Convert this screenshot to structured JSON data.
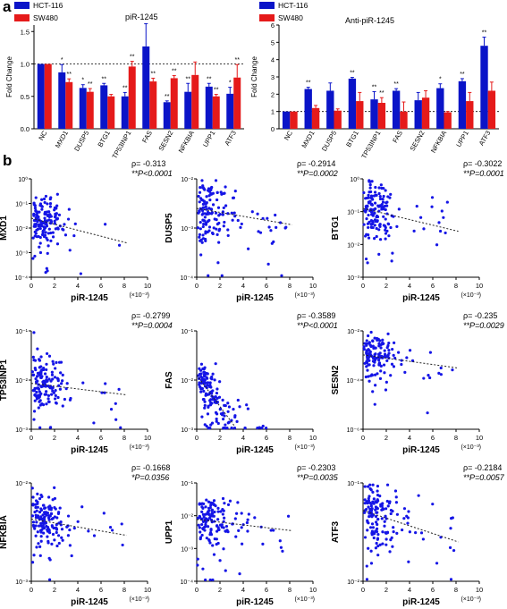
{
  "panel_labels": {
    "a": "a",
    "b": "b"
  },
  "colors": {
    "hct": "#0a14c8",
    "sw": "#e51a1a",
    "dots": "#1515e6"
  },
  "chart_data": [
    {
      "type": "bar",
      "title": "piR-1245",
      "ylabel": "Fold Change",
      "ylim": [
        0,
        1.6
      ],
      "yticks": [
        "0.0",
        "0.5",
        "1.0",
        "1.5"
      ],
      "reference_line": 1.0,
      "categories": [
        "NC",
        "MXD1",
        "DUSP5",
        "BTG1",
        "TP53INP1",
        "FAS",
        "SESN2",
        "NFKBIA",
        "UPP1",
        "ATF3"
      ],
      "series": [
        {
          "name": "HCT-116",
          "values": [
            1.0,
            0.87,
            0.63,
            0.67,
            0.5,
            1.27,
            0.41,
            0.57,
            0.65,
            0.54
          ],
          "errors": [
            0.0,
            0.12,
            0.05,
            0.03,
            0.06,
            0.35,
            0.02,
            0.13,
            0.05,
            0.1
          ]
        },
        {
          "name": "SW480",
          "values": [
            1.0,
            0.72,
            0.57,
            0.5,
            0.96,
            0.73,
            0.78,
            0.83,
            0.5,
            0.79
          ],
          "errors": [
            0.0,
            0.05,
            0.05,
            0.03,
            0.08,
            0.05,
            0.04,
            0.2,
            0.03,
            0.2
          ]
        }
      ],
      "annotations": {
        "HCT-116": [
          "",
          "*",
          "*",
          "**",
          "**",
          "",
          "**",
          "**",
          "**",
          "*"
        ],
        "SW480": [
          "",
          "**",
          "**",
          "",
          "**",
          "**",
          "**",
          "",
          "**",
          "**"
        ]
      },
      "legend": [
        "HCT-116",
        "SW480"
      ]
    },
    {
      "type": "bar",
      "title": "Anti-piR-1245",
      "ylabel": "Fold Change",
      "ylim": [
        0,
        6
      ],
      "yticks": [
        "0",
        "1",
        "2",
        "3",
        "4",
        "5",
        "6"
      ],
      "reference_line": 1.0,
      "categories": [
        "NC",
        "MXD1",
        "DUSP5",
        "BTG1",
        "TP53INP1",
        "FAS",
        "SESN2",
        "NFKBIA",
        "UPP1",
        "ATF3"
      ],
      "series": [
        {
          "name": "HCT-116",
          "values": [
            1.0,
            2.3,
            2.2,
            2.9,
            1.7,
            2.2,
            1.65,
            2.35,
            2.75,
            4.8
          ],
          "errors": [
            0.0,
            0.1,
            0.45,
            0.07,
            0.45,
            0.12,
            0.45,
            0.25,
            0.15,
            0.5
          ]
        },
        {
          "name": "SW480",
          "values": [
            1.0,
            1.2,
            1.05,
            1.6,
            1.5,
            1.0,
            1.8,
            0.95,
            1.6,
            2.2
          ],
          "errors": [
            0.0,
            0.15,
            0.1,
            0.5,
            0.3,
            0.55,
            0.4,
            0.05,
            0.5,
            0.5
          ]
        }
      ],
      "annotations": {
        "HCT-116": [
          "",
          "**",
          "",
          "**",
          "**",
          "**",
          "",
          "*",
          "**",
          "**"
        ],
        "SW480": [
          "",
          "",
          "",
          "",
          "**",
          "",
          "",
          "",
          "",
          ""
        ]
      },
      "legend": [
        "HCT-116",
        "SW480"
      ]
    },
    {
      "type": "scatter",
      "ylabel": "MXD1",
      "xlabel": "piR-1245",
      "xunit": "(×10⁻³)",
      "xlim": [
        0,
        10
      ],
      "xticks": [
        0,
        2,
        4,
        6,
        8,
        10
      ],
      "ylog": [
        -4,
        0
      ],
      "yticks": [
        "10⁰",
        "10⁻¹",
        "10⁻²",
        "10⁻³",
        "10⁻⁴"
      ],
      "rho": "ρ= -0.313",
      "pvalue": "**P<0.0001",
      "trend": [
        [
          0,
          -1.6
        ],
        [
          8.2,
          -2.6
        ]
      ]
    },
    {
      "type": "scatter",
      "ylabel": "DUSP5",
      "xlabel": "piR-1245",
      "xunit": "(×10⁻³)",
      "xlim": [
        0,
        10
      ],
      "xticks": [
        0,
        2,
        4,
        6,
        8,
        10
      ],
      "ylog": [
        -4,
        -1
      ],
      "yticks": [
        "10⁻²",
        "10⁻³",
        "10⁻⁴"
      ],
      "rho": "ρ= -0.2914",
      "pvalue": "**P=0.0002",
      "trend": [
        [
          0,
          -1.9
        ],
        [
          8.2,
          -2.4
        ]
      ]
    },
    {
      "type": "scatter",
      "ylabel": "BTG1",
      "xlabel": "piR-1245",
      "xunit": "(×10⁻³)",
      "xlim": [
        0,
        10
      ],
      "xticks": [
        0,
        2,
        4,
        6,
        8,
        10
      ],
      "ylog": [
        -3,
        0
      ],
      "yticks": [
        "10⁰",
        "10⁻¹",
        "10⁻²",
        "10⁻³"
      ],
      "rho": "ρ= -0.3022",
      "pvalue": "**P=0.0001",
      "trend": [
        [
          0,
          -0.9
        ],
        [
          8.2,
          -1.6
        ]
      ]
    },
    {
      "type": "scatter",
      "ylabel": "TP53INP1",
      "xlabel": "piR-1245",
      "xunit": "(×10⁻³)",
      "xlim": [
        0,
        10
      ],
      "xticks": [
        0,
        2,
        4,
        6,
        8,
        10
      ],
      "ylog": [
        -3,
        0
      ],
      "yticks": [
        "10⁻¹",
        "10⁻²",
        "10⁻³"
      ],
      "rho": "ρ= -0.2799",
      "pvalue": "**P=0.0004",
      "trend": [
        [
          0,
          -1.6
        ],
        [
          8.2,
          -1.95
        ]
      ]
    },
    {
      "type": "scatter",
      "ylabel": "FAS",
      "xlabel": "piR-1245",
      "xunit": "(×10⁻³)",
      "xlim": [
        0,
        10
      ],
      "xticks": [
        0,
        2,
        4,
        6,
        8,
        10
      ],
      "ylog": [
        -4,
        0
      ],
      "yticks": [
        "10⁻¹",
        "10⁻²",
        "10⁻³"
      ],
      "rho": "ρ= -0.3589",
      "pvalue": "**P<0.0001",
      "trend": [
        [
          0,
          -1.8
        ],
        [
          3.3,
          -3.9
        ]
      ]
    },
    {
      "type": "scatter",
      "ylabel": "SESN2",
      "xlabel": "piR-1245",
      "xunit": "(×10⁻³)",
      "xlim": [
        0,
        10
      ],
      "xticks": [
        0,
        2,
        4,
        6,
        8,
        10
      ],
      "ylog": [
        -6,
        -1.5
      ],
      "yticks": [
        "10⁻²",
        "10⁻⁴",
        "10⁻⁶"
      ],
      "rho": "ρ= -0.235",
      "pvalue": "**P=0.0029",
      "trend": [
        [
          0,
          -2.6
        ],
        [
          8.2,
          -3.2
        ]
      ]
    },
    {
      "type": "scatter",
      "ylabel": "NFKBIA",
      "xlabel": "piR-1245",
      "xunit": "(×10⁻³)",
      "xlim": [
        0,
        10
      ],
      "xticks": [
        0,
        2,
        4,
        6,
        8,
        10
      ],
      "ylog": [
        -4,
        -1
      ],
      "yticks": [
        "10⁻²",
        "10⁻³"
      ],
      "rho": "ρ= -0.1668",
      "pvalue": "*P=0.0356",
      "trend": [
        [
          0,
          -2.1
        ],
        [
          8.2,
          -2.6
        ]
      ]
    },
    {
      "type": "scatter",
      "ylabel": "UPP1",
      "xlabel": "piR-1245",
      "xunit": "(×10⁻³)",
      "xlim": [
        0,
        10
      ],
      "xticks": [
        0,
        2,
        4,
        6,
        8,
        10
      ],
      "ylog": [
        -4,
        -0.5
      ],
      "yticks": [
        "10⁻¹",
        "10⁻²",
        "10⁻³",
        "10⁻⁴"
      ],
      "rho": "ρ= -0.2303",
      "pvalue": "**P=0.0035",
      "trend": [
        [
          0,
          -1.8
        ],
        [
          8.2,
          -2.2
        ]
      ]
    },
    {
      "type": "scatter",
      "ylabel": "ATF3",
      "xlabel": "piR-1245",
      "xunit": "(×10⁻³)",
      "xlim": [
        0,
        10
      ],
      "xticks": [
        0,
        2,
        4,
        6,
        8,
        10
      ],
      "ylog": [
        -3,
        -0.5
      ],
      "yticks": [
        "10⁻¹",
        "10⁻²"
      ],
      "rho": "ρ= -0.2184",
      "pvalue": "**P=0.0057",
      "trend": [
        [
          0,
          -1.2
        ],
        [
          8.2,
          -2.0
        ]
      ]
    }
  ]
}
